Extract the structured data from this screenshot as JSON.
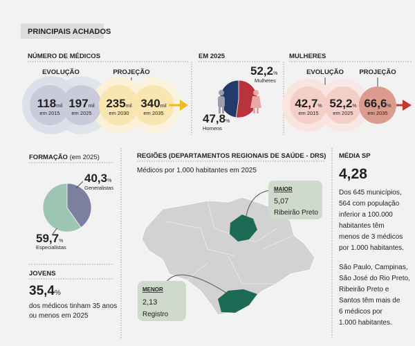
{
  "header": {
    "title": "PRINCIPAIS ACHADOS"
  },
  "medicos": {
    "title": "NÚMERO DE MÉDICOS",
    "evolucao": "EVOLUÇÃO",
    "projecao": "PROJEÇÃO",
    "items": [
      {
        "number": "118",
        "unit": "mil",
        "year": "em 2015"
      },
      {
        "number": "197",
        "unit": "mil",
        "year": "em 2025"
      },
      {
        "number": "235",
        "unit": "mil",
        "year": "em 2030"
      },
      {
        "number": "340",
        "unit": "mil",
        "year": "em 2035"
      }
    ]
  },
  "em2025": {
    "title": "EM 2025",
    "labels": [
      "Mulheres",
      "Homens"
    ],
    "values": [
      52.2,
      47.8
    ],
    "value_labels": [
      "52,2",
      "47,8"
    ],
    "unit": "%",
    "colors": [
      "#b8333b",
      "#233a6b"
    ]
  },
  "mulheres": {
    "title": "MULHERES",
    "evolucao": "EVOLUÇÃO",
    "projecao": "PROJEÇÃO",
    "items": [
      {
        "number": "42,7",
        "unit": "%",
        "year": "em 2015"
      },
      {
        "number": "52,2",
        "unit": "%",
        "year": "em 2025"
      },
      {
        "number": "66,6",
        "unit": "%",
        "year": "em 2035"
      }
    ]
  },
  "formacao": {
    "title": "FORMAÇÃO",
    "subtitle": "(em 2025)",
    "labels": [
      "Generalistas",
      "Especialistas"
    ],
    "values": [
      40.3,
      59.7
    ],
    "value_labels": [
      "40,3",
      "59,7"
    ],
    "unit": "%",
    "colors": [
      "#7d7f9f",
      "#9cc6b3"
    ]
  },
  "jovens": {
    "title": "JOVENS",
    "number": "35,4",
    "unit": "%",
    "lines": [
      "dos médicos tinham 35 anos",
      "ou menos em 2025"
    ]
  },
  "regioes": {
    "title": "REGIÕES (DEPARTAMENTOS REGIONAIS DE SAÚDE - DRS)",
    "subtitle": "Médicos por 1.000 habitantes em 2025",
    "maior": {
      "label": "MAIOR",
      "value": "5,07",
      "name": "Ribeirão Preto"
    },
    "menor": {
      "label": "MENOR",
      "value": "2,13",
      "name": "Registro"
    }
  },
  "media_sp": {
    "title": "MÉDIA SP",
    "value": "4,28",
    "paragraphs": [
      [
        "Dos 645 municípios,",
        "564 com população",
        "inferior a 100.000",
        "habitantes têm",
        "menos de 3 médicos",
        "por 1.000 habitantes."
      ],
      [
        "São Paulo, Campinas,",
        "São José do Rio Preto,",
        "Ribeirão Preto e",
        "Santos têm mais de",
        "6 médicos por",
        "1.000 habitantes."
      ]
    ]
  }
}
